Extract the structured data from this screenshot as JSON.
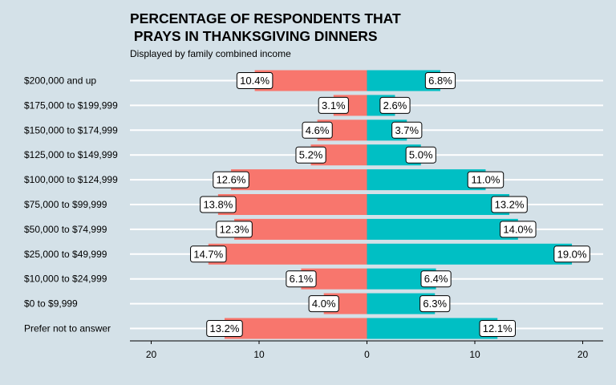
{
  "title": "PERCENTAGE OF RESPONDENTS THAT\n PRAYS IN THANKSGIVING DINNERS",
  "subtitle": "Displayed by family combined income",
  "chart_data": {
    "type": "bar",
    "orientation": "horizontal-diverging",
    "title": "PERCENTAGE OF RESPONDENTS THAT\n PRAYS IN THANKSGIVING DINNERS",
    "subtitle": "Displayed by family combined income",
    "xlabel": "",
    "ylabel": "",
    "xlim": [
      -22,
      22
    ],
    "xticks": [
      -20,
      -10,
      0,
      10,
      20
    ],
    "xtick_labels": [
      "20",
      "10",
      "0",
      "10",
      "20"
    ],
    "grid": "horizontal lines only",
    "legend": "none",
    "categories": [
      "$200,000 and up",
      "$175,000 to $199,999",
      "$150,000 to $174,999",
      "$125,000 to $149,999",
      "$100,000 to $124,999",
      "$75,000 to $99,999",
      "$50,000 to $74,999",
      "$25,000 to $49,999",
      "$10,000 to $24,999",
      "$0 to $9,999",
      "Prefer not to answer"
    ],
    "series": [
      {
        "side": "left",
        "color": "#f8766d",
        "values": [
          10.4,
          3.1,
          4.6,
          5.2,
          12.6,
          13.8,
          12.3,
          14.7,
          6.1,
          4.0,
          13.2
        ],
        "labels": [
          "10.4%",
          "3.1%",
          "4.6%",
          "5.2%",
          "12.6%",
          "13.8%",
          "12.3%",
          "14.7%",
          "6.1%",
          "4.0%",
          "13.2%"
        ]
      },
      {
        "side": "right",
        "color": "#00bfc4",
        "values": [
          6.8,
          2.6,
          3.7,
          5.0,
          11.0,
          13.2,
          14.0,
          19.0,
          6.4,
          6.3,
          12.1
        ],
        "labels": [
          "6.8%",
          "2.6%",
          "3.7%",
          "5.0%",
          "11.0%",
          "13.2%",
          "14.0%",
          "19.0%",
          "6.4%",
          "6.3%",
          "12.1%"
        ]
      }
    ]
  }
}
